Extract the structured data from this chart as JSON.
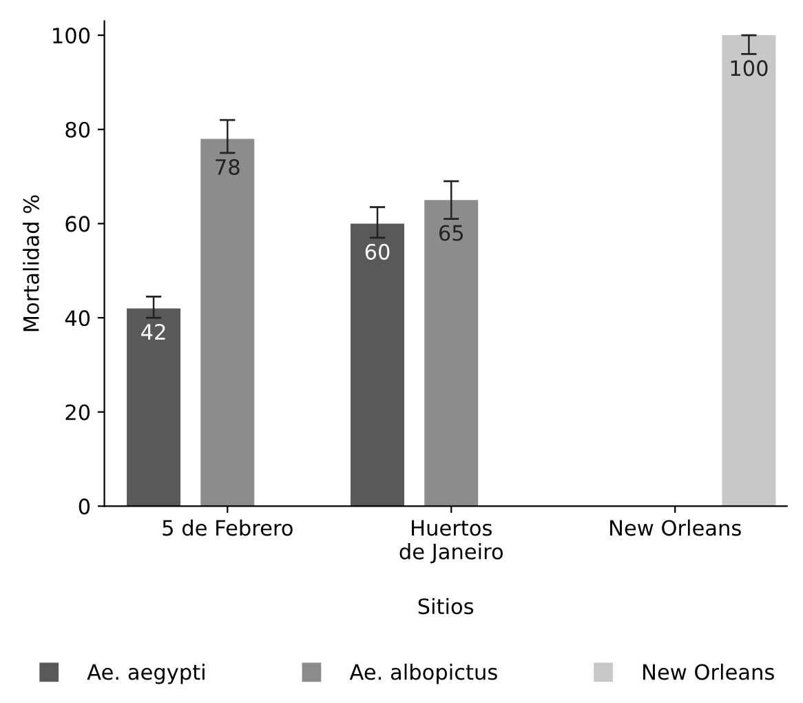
{
  "chart_data": {
    "type": "bar",
    "xlabel": "Sitios",
    "ylabel": "Mortalidad %",
    "categories": [
      "5 de Febrero",
      "Huertos\nde Janeiro",
      "New Orleans"
    ],
    "series": [
      {
        "name": "Ae. aegypti",
        "color": "#595959",
        "values": [
          42,
          60,
          null
        ],
        "errors": [
          [
            40,
            44.5
          ],
          [
            57,
            63.5
          ],
          null
        ]
      },
      {
        "name": "Ae. albopictus",
        "color": "#8c8c8c",
        "values": [
          78,
          65,
          null
        ],
        "errors": [
          [
            75,
            82
          ],
          [
            61,
            69
          ],
          null
        ]
      },
      {
        "name": "New Orleans",
        "color": "#c8c8c8",
        "values": [
          null,
          null,
          100
        ],
        "errors": [
          null,
          null,
          [
            96,
            100
          ]
        ]
      }
    ],
    "ylim": [
      0,
      103
    ],
    "yticks": [
      0,
      20,
      40,
      60,
      80,
      100
    ],
    "data_labels": true,
    "grid": false,
    "legend": "bottom"
  }
}
